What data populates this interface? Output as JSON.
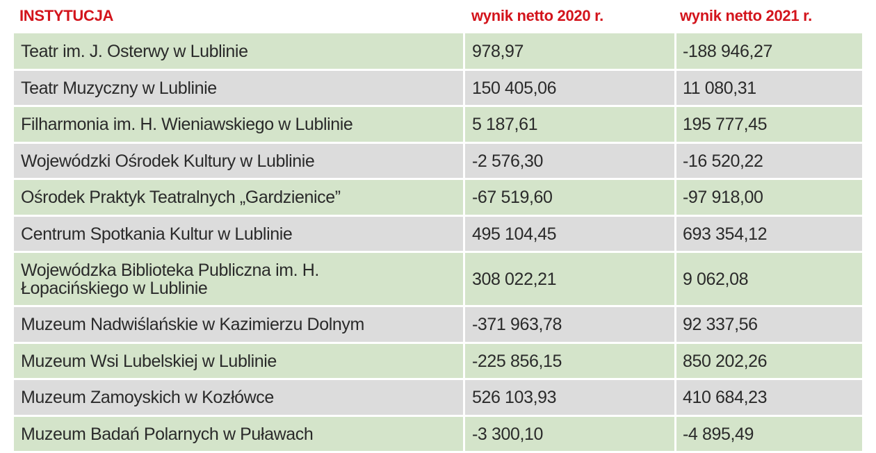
{
  "table": {
    "headers": {
      "institution": "INSTYTUCJA",
      "net2020": "wynik netto 2020 r.",
      "net2021": "wynik netto 2021 r."
    },
    "rows": [
      {
        "name": "Teatr im. J. Osterwy w Lublinie",
        "net2020": "978,97",
        "net2021": "-188 946,27"
      },
      {
        "name": "Teatr Muzyczny w Lublinie",
        "net2020": "150 405,06",
        "net2021": "11 080,31"
      },
      {
        "name": "Filharmonia im. H. Wieniawskiego w Lublinie",
        "net2020": "5 187,61",
        "net2021": "195 777,45"
      },
      {
        "name": "Wojewódzki Ośrodek Kultury w Lublinie",
        "net2020": "-2 576,30",
        "net2021": "-16 520,22"
      },
      {
        "name": "Ośrodek Praktyk Teatralnych „Gardzienice”",
        "net2020": "-67 519,60",
        "net2021": "-97 918,00"
      },
      {
        "name": "Centrum Spotkania Kultur w Lublinie",
        "net2020": "495 104,45",
        "net2021": "693 354,12"
      },
      {
        "name": "Wojewódzka Biblioteka Publiczna im. H. Łopacińskiego w Lublinie",
        "net2020": "308 022,21",
        "net2021": "9 062,08"
      },
      {
        "name": "Muzeum Nadwiślańskie w Kazimierzu Dolnym",
        "net2020": "-371 963,78",
        "net2021": "92 337,56"
      },
      {
        "name": "Muzeum Wsi Lubelskiej w Lublinie",
        "net2020": "-225 856,15",
        "net2021": "850 202,26"
      },
      {
        "name": "Muzeum Zamoyskich w Kozłówce",
        "net2020": "526 103,93",
        "net2021": "410 684,23"
      },
      {
        "name": "Muzeum Badań Polarnych w Puławach",
        "net2020": "-3 300,10",
        "net2021": "-4 895,49"
      }
    ]
  },
  "colors": {
    "header_text": "#d3141c",
    "row_green": "#d4e4ca",
    "row_grey": "#dcdcdc"
  }
}
